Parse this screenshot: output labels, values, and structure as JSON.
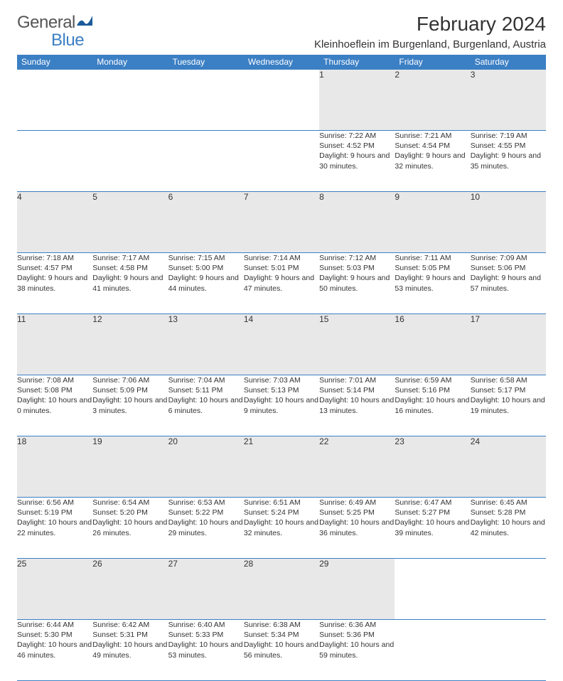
{
  "logo": {
    "text1": "General",
    "text2": "Blue",
    "color_general": "#555555",
    "color_blue": "#3b7fc4"
  },
  "title": "February 2024",
  "location": "Kleinhoeflein im Burgenland, Burgenland, Austria",
  "header_bg": "#3b7fc4",
  "daynum_bg": "#e8e8e8",
  "weekdays": [
    "Sunday",
    "Monday",
    "Tuesday",
    "Wednesday",
    "Thursday",
    "Friday",
    "Saturday"
  ],
  "weeks": [
    [
      null,
      null,
      null,
      null,
      {
        "n": "1",
        "sr": "7:22 AM",
        "ss": "4:52 PM",
        "dl": "9 hours and 30 minutes."
      },
      {
        "n": "2",
        "sr": "7:21 AM",
        "ss": "4:54 PM",
        "dl": "9 hours and 32 minutes."
      },
      {
        "n": "3",
        "sr": "7:19 AM",
        "ss": "4:55 PM",
        "dl": "9 hours and 35 minutes."
      }
    ],
    [
      {
        "n": "4",
        "sr": "7:18 AM",
        "ss": "4:57 PM",
        "dl": "9 hours and 38 minutes."
      },
      {
        "n": "5",
        "sr": "7:17 AM",
        "ss": "4:58 PM",
        "dl": "9 hours and 41 minutes."
      },
      {
        "n": "6",
        "sr": "7:15 AM",
        "ss": "5:00 PM",
        "dl": "9 hours and 44 minutes."
      },
      {
        "n": "7",
        "sr": "7:14 AM",
        "ss": "5:01 PM",
        "dl": "9 hours and 47 minutes."
      },
      {
        "n": "8",
        "sr": "7:12 AM",
        "ss": "5:03 PM",
        "dl": "9 hours and 50 minutes."
      },
      {
        "n": "9",
        "sr": "7:11 AM",
        "ss": "5:05 PM",
        "dl": "9 hours and 53 minutes."
      },
      {
        "n": "10",
        "sr": "7:09 AM",
        "ss": "5:06 PM",
        "dl": "9 hours and 57 minutes."
      }
    ],
    [
      {
        "n": "11",
        "sr": "7:08 AM",
        "ss": "5:08 PM",
        "dl": "10 hours and 0 minutes."
      },
      {
        "n": "12",
        "sr": "7:06 AM",
        "ss": "5:09 PM",
        "dl": "10 hours and 3 minutes."
      },
      {
        "n": "13",
        "sr": "7:04 AM",
        "ss": "5:11 PM",
        "dl": "10 hours and 6 minutes."
      },
      {
        "n": "14",
        "sr": "7:03 AM",
        "ss": "5:13 PM",
        "dl": "10 hours and 9 minutes."
      },
      {
        "n": "15",
        "sr": "7:01 AM",
        "ss": "5:14 PM",
        "dl": "10 hours and 13 minutes."
      },
      {
        "n": "16",
        "sr": "6:59 AM",
        "ss": "5:16 PM",
        "dl": "10 hours and 16 minutes."
      },
      {
        "n": "17",
        "sr": "6:58 AM",
        "ss": "5:17 PM",
        "dl": "10 hours and 19 minutes."
      }
    ],
    [
      {
        "n": "18",
        "sr": "6:56 AM",
        "ss": "5:19 PM",
        "dl": "10 hours and 22 minutes."
      },
      {
        "n": "19",
        "sr": "6:54 AM",
        "ss": "5:20 PM",
        "dl": "10 hours and 26 minutes."
      },
      {
        "n": "20",
        "sr": "6:53 AM",
        "ss": "5:22 PM",
        "dl": "10 hours and 29 minutes."
      },
      {
        "n": "21",
        "sr": "6:51 AM",
        "ss": "5:24 PM",
        "dl": "10 hours and 32 minutes."
      },
      {
        "n": "22",
        "sr": "6:49 AM",
        "ss": "5:25 PM",
        "dl": "10 hours and 36 minutes."
      },
      {
        "n": "23",
        "sr": "6:47 AM",
        "ss": "5:27 PM",
        "dl": "10 hours and 39 minutes."
      },
      {
        "n": "24",
        "sr": "6:45 AM",
        "ss": "5:28 PM",
        "dl": "10 hours and 42 minutes."
      }
    ],
    [
      {
        "n": "25",
        "sr": "6:44 AM",
        "ss": "5:30 PM",
        "dl": "10 hours and 46 minutes."
      },
      {
        "n": "26",
        "sr": "6:42 AM",
        "ss": "5:31 PM",
        "dl": "10 hours and 49 minutes."
      },
      {
        "n": "27",
        "sr": "6:40 AM",
        "ss": "5:33 PM",
        "dl": "10 hours and 53 minutes."
      },
      {
        "n": "28",
        "sr": "6:38 AM",
        "ss": "5:34 PM",
        "dl": "10 hours and 56 minutes."
      },
      {
        "n": "29",
        "sr": "6:36 AM",
        "ss": "5:36 PM",
        "dl": "10 hours and 59 minutes."
      },
      null,
      null
    ]
  ],
  "labels": {
    "sunrise": "Sunrise: ",
    "sunset": "Sunset: ",
    "daylight": "Daylight: "
  }
}
